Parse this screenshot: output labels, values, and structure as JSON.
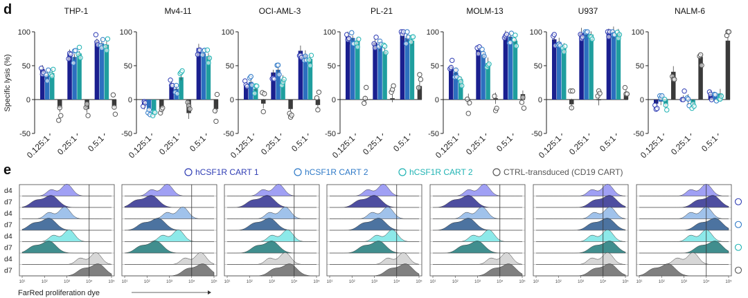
{
  "panel_d": {
    "letter": "d",
    "ylabel": "Specific lysis (%)",
    "yticks": [
      "100",
      "50",
      "0",
      "-50"
    ],
    "categories": [
      "0.125:1",
      "0.25:1",
      "0.5:1"
    ]
  },
  "panel_e": {
    "letter": "e",
    "legend": [
      {
        "label": "hCSF1R CART 1",
        "color": "#2d3bb3"
      },
      {
        "label": "hCSF1R CART 2",
        "color": "#2e79c7"
      },
      {
        "label": "hCSF1R CART 2",
        "color": "#1fb3b3"
      },
      {
        "label": "CTRL-transduced (CD19 CART)",
        "color": "#555555"
      }
    ],
    "row_labels": [
      "d4",
      "d7",
      "d4",
      "d7",
      "d4",
      "d7",
      "d4",
      "d7"
    ],
    "xticks": [
      "10¹",
      "10²",
      "10³",
      "10⁴",
      "10⁵"
    ],
    "xlabel": "FarRed proliferation dye"
  },
  "colors": {
    "cart1": "#1a1f8f",
    "cart2a": "#2c6fbf",
    "cart2b": "#1f9e9e",
    "ctrl": "#3a3a3a"
  },
  "chart_data": [
    {
      "type": "bar",
      "panel": "d",
      "title": "THP-1",
      "categories": [
        "0.125:1",
        "0.25:1",
        "0.5:1"
      ],
      "ylim": [
        -50,
        100
      ],
      "series": [
        {
          "name": "hCSF1R CART 1",
          "values": [
            45,
            67,
            86
          ]
        },
        {
          "name": "hCSF1R CART 2",
          "values": [
            36,
            63,
            83
          ]
        },
        {
          "name": "hCSF1R CART 2",
          "values": [
            39,
            68,
            81
          ]
        },
        {
          "name": "CTRL-transduced (CD19 CART)",
          "values": [
            -12,
            -14,
            -10
          ]
        }
      ]
    },
    {
      "type": "bar",
      "panel": "d",
      "title": "Mv4-11",
      "categories": [
        "0.125:1",
        "0.25:1",
        "0.5:1"
      ],
      "ylim": [
        -50,
        100
      ],
      "series": [
        {
          "name": "hCSF1R CART 1",
          "values": [
            -8,
            22,
            76
          ]
        },
        {
          "name": "hCSF1R CART 2",
          "values": [
            -14,
            16,
            68
          ]
        },
        {
          "name": "hCSF1R CART 2",
          "values": [
            -22,
            33,
            64
          ]
        },
        {
          "name": "CTRL-transduced (CD19 CART)",
          "values": [
            -12,
            -20,
            -14
          ]
        }
      ]
    },
    {
      "type": "bar",
      "panel": "d",
      "title": "OCI-AML-3",
      "categories": [
        "0.125:1",
        "0.25:1",
        "0.5:1"
      ],
      "ylim": [
        -50,
        100
      ],
      "series": [
        {
          "name": "hCSF1R CART 1",
          "values": [
            20,
            40,
            72
          ]
        },
        {
          "name": "hCSF1R CART 2",
          "values": [
            26,
            44,
            66
          ]
        },
        {
          "name": "hCSF1R CART 2",
          "values": [
            16,
            30,
            60
          ]
        },
        {
          "name": "CTRL-transduced (CD19 CART)",
          "values": [
            -6,
            -14,
            -8
          ]
        }
      ]
    },
    {
      "type": "bar",
      "panel": "d",
      "title": "PL-21",
      "categories": [
        "0.125:1",
        "0.25:1",
        "0.5:1"
      ],
      "ylim": [
        -50,
        100
      ],
      "series": [
        {
          "name": "hCSF1R CART 1",
          "values": [
            93,
            84,
            94
          ]
        },
        {
          "name": "hCSF1R CART 2",
          "values": [
            91,
            78,
            91
          ]
        },
        {
          "name": "hCSF1R CART 2",
          "values": [
            87,
            71,
            87
          ]
        },
        {
          "name": "CTRL-transduced (CD19 CART)",
          "values": [
            0,
            2,
            20
          ]
        }
      ]
    },
    {
      "type": "bar",
      "panel": "d",
      "title": "MOLM-13",
      "categories": [
        "0.125:1",
        "0.25:1",
        "0.5:1"
      ],
      "ylim": [
        -50,
        100
      ],
      "series": [
        {
          "name": "hCSF1R CART 1",
          "values": [
            48,
            73,
            96
          ]
        },
        {
          "name": "hCSF1R CART 2",
          "values": [
            40,
            66,
            93
          ]
        },
        {
          "name": "hCSF1R CART 2",
          "values": [
            30,
            54,
            87
          ]
        },
        {
          "name": "CTRL-transduced (CD19 CART)",
          "values": [
            0,
            2,
            8
          ]
        }
      ]
    },
    {
      "type": "bar",
      "panel": "d",
      "title": "U937",
      "categories": [
        "0.125:1",
        "0.25:1",
        "0.5:1"
      ],
      "ylim": [
        -50,
        100
      ],
      "series": [
        {
          "name": "hCSF1R CART 1",
          "values": [
            89,
            98,
            100
          ]
        },
        {
          "name": "hCSF1R CART 2",
          "values": [
            85,
            97,
            99
          ]
        },
        {
          "name": "hCSF1R CART 2",
          "values": [
            76,
            96,
            98
          ]
        },
        {
          "name": "CTRL-transduced (CD19 CART)",
          "values": [
            -7,
            0,
            7
          ]
        }
      ]
    },
    {
      "type": "bar",
      "panel": "d",
      "title": "NALM-6",
      "categories": [
        "0.125:1",
        "0.25:1",
        "0.5:1"
      ],
      "ylim": [
        -50,
        100
      ],
      "series": [
        {
          "name": "hCSF1R CART 1",
          "values": [
            -6,
            3,
            8
          ]
        },
        {
          "name": "hCSF1R CART 2",
          "values": [
            -3,
            0,
            8
          ]
        },
        {
          "name": "hCSF1R CART 2",
          "values": [
            -7,
            -6,
            9
          ]
        },
        {
          "name": "CTRL-transduced (CD19 CART)",
          "values": [
            41,
            63,
            87
          ]
        }
      ]
    },
    {
      "type": "area",
      "panel": "e",
      "xlabel": "FarRed proliferation dye",
      "x_scale": "log",
      "xlim": [
        10,
        100000
      ],
      "row_labels": [
        "d4",
        "d7",
        "d4",
        "d7",
        "d4",
        "d7",
        "d4",
        "d7"
      ],
      "cell_lines": [
        "THP-1",
        "Mv4-11",
        "OCI-AML-3",
        "PL-21",
        "MOLM-13",
        "U937",
        "NALM-6"
      ],
      "peaks_log10": [
        [
          3.0,
          2.3,
          2.9,
          2.2,
          3.1,
          2.2,
          4.3,
          4.4
        ],
        [
          2.9,
          2.2,
          3.6,
          2.5,
          3.4,
          2.4,
          4.4,
          4.5
        ],
        [
          3.3,
          2.8,
          3.6,
          2.9,
          3.7,
          3.0,
          3.6,
          3.8
        ],
        [
          3.4,
          3.0,
          3.6,
          3.2,
          3.8,
          3.2,
          4.3,
          4.4
        ],
        [
          3.3,
          2.6,
          3.2,
          2.6,
          3.5,
          3.0,
          4.3,
          4.4
        ],
        [
          4.2,
          4.3,
          4.3,
          4.2,
          4.2,
          4.3,
          4.2,
          4.3
        ],
        [
          4.0,
          4.3,
          4.0,
          4.4,
          4.0,
          4.4,
          3.4,
          2.3
        ]
      ]
    }
  ]
}
